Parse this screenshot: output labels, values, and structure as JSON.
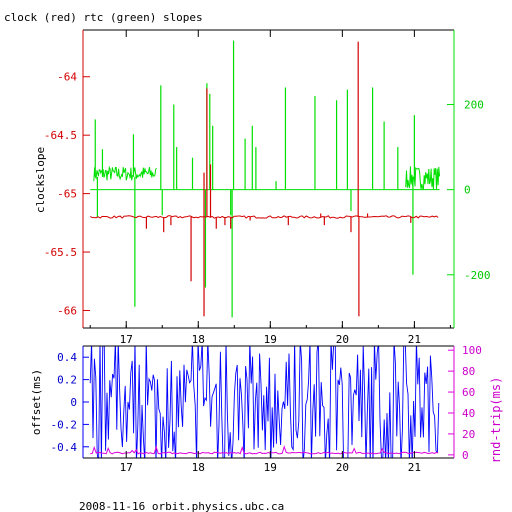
{
  "title": "clock (red) rtc (green) slopes",
  "footer": "2008-11-16 orbit.physics.ubc.ca",
  "colors": {
    "red": "#d40000",
    "green": "#00e000",
    "blue": "#0000ff",
    "magenta": "#dd00dd",
    "axis_black": "#000000"
  },
  "chart_data": [
    {
      "type": "line",
      "xlim": [
        16.4,
        21.55
      ],
      "x_ticks": [
        17,
        18,
        19,
        20,
        21
      ],
      "x_tick_labels": [
        "17",
        "18",
        "19",
        "20",
        "21"
      ],
      "left_axis": {
        "label": "clockslope",
        "ylim": [
          -66.15,
          -63.6
        ],
        "ticks": [
          -64,
          -64.5,
          -65,
          -65.5,
          -66
        ],
        "tick_labels": [
          "-64",
          "-64.5",
          "-65",
          "-65.5",
          "-66"
        ]
      },
      "right_axis": {
        "label": "",
        "ylim": [
          -325,
          375
        ],
        "ticks": [
          200,
          0,
          -200
        ],
        "tick_labels": [
          "200",
          "0",
          "-200"
        ]
      },
      "series": [
        {
          "name": "clock",
          "axis": "left",
          "color": "red",
          "baseline_y": -65.2,
          "x_range": [
            16.5,
            21.35
          ],
          "spikes": [
            {
              "x": 17.28,
              "y": -65.3
            },
            {
              "x": 17.52,
              "y": -65.33
            },
            {
              "x": 17.62,
              "y": -65.27
            },
            {
              "x": 17.9,
              "y": -65.75
            },
            {
              "x": 18.08,
              "y": -66.05
            },
            {
              "x": 18.08,
              "y": -64.82
            },
            {
              "x": 18.12,
              "y": -64.1
            },
            {
              "x": 18.17,
              "y": -64.75
            },
            {
              "x": 18.25,
              "y": -65.3
            },
            {
              "x": 18.37,
              "y": -65.27
            },
            {
              "x": 18.45,
              "y": -65.3
            },
            {
              "x": 18.72,
              "y": -65.23
            },
            {
              "x": 19.25,
              "y": -65.27
            },
            {
              "x": 19.7,
              "y": -65.17
            },
            {
              "x": 19.75,
              "y": -65.27
            },
            {
              "x": 20.12,
              "y": -65.33
            },
            {
              "x": 20.22,
              "y": -63.7
            },
            {
              "x": 20.23,
              "y": -66.05
            },
            {
              "x": 20.35,
              "y": -65.17
            },
            {
              "x": 20.95,
              "y": -65.25
            }
          ]
        },
        {
          "name": "rtc",
          "axis": "right",
          "color": "green",
          "baseline_y": 0,
          "x_range": [
            16.5,
            21.35
          ],
          "noisy_bands": [
            {
              "x0": 16.55,
              "x1": 17.42,
              "ylow": 20,
              "yhigh": 55
            },
            {
              "x0": 20.88,
              "x1": 21.35,
              "ylow": 0,
              "yhigh": 55
            }
          ],
          "spikes": [
            {
              "x": 16.57,
              "y": 165
            },
            {
              "x": 16.6,
              "y": -65
            },
            {
              "x": 16.67,
              "y": 95
            },
            {
              "x": 17.1,
              "y": 130
            },
            {
              "x": 17.12,
              "y": -275
            },
            {
              "x": 17.48,
              "y": 245
            },
            {
              "x": 17.5,
              "y": -60
            },
            {
              "x": 17.66,
              "y": 200
            },
            {
              "x": 17.7,
              "y": 100
            },
            {
              "x": 17.92,
              "y": 75
            },
            {
              "x": 18.1,
              "y": -230
            },
            {
              "x": 18.12,
              "y": 250
            },
            {
              "x": 18.16,
              "y": 225
            },
            {
              "x": 18.2,
              "y": 150
            },
            {
              "x": 18.45,
              "y": -60
            },
            {
              "x": 18.47,
              "y": -300
            },
            {
              "x": 18.49,
              "y": 350
            },
            {
              "x": 18.65,
              "y": 120
            },
            {
              "x": 18.75,
              "y": 150
            },
            {
              "x": 18.8,
              "y": 100
            },
            {
              "x": 19.08,
              "y": 20
            },
            {
              "x": 19.21,
              "y": 240
            },
            {
              "x": 19.62,
              "y": 220
            },
            {
              "x": 19.92,
              "y": 210
            },
            {
              "x": 20.07,
              "y": 235
            },
            {
              "x": 20.12,
              "y": -50
            },
            {
              "x": 20.42,
              "y": 240
            },
            {
              "x": 20.58,
              "y": 160
            },
            {
              "x": 20.77,
              "y": 100
            },
            {
              "x": 20.98,
              "y": -200
            },
            {
              "x": 21.0,
              "y": 175
            }
          ]
        }
      ]
    },
    {
      "type": "line",
      "xlim": [
        16.4,
        21.55
      ],
      "x_ticks": [
        17,
        18,
        19,
        20,
        21
      ],
      "x_tick_labels": [
        "17",
        "18",
        "19",
        "20",
        "21"
      ],
      "left_axis": {
        "label": "offset(ms)",
        "ylim": [
          -0.5,
          0.5
        ],
        "ticks": [
          0.4,
          0.2,
          0,
          -0.2,
          -0.4
        ],
        "tick_labels": [
          "0.4",
          "0.2",
          "0",
          "-0.2",
          "-0.4"
        ]
      },
      "right_axis": {
        "label": "rnd-trip(ms)",
        "ylim": [
          -3,
          104
        ],
        "ticks": [
          100,
          80,
          60,
          40,
          20,
          0
        ],
        "tick_labels": [
          "100",
          "80",
          "60",
          "40",
          "20",
          "0"
        ]
      },
      "series": [
        {
          "name": "offset",
          "axis": "left",
          "color": "blue",
          "x_range": [
            16.5,
            21.35
          ],
          "y_range": [
            -0.5,
            0.5
          ]
        },
        {
          "name": "rnd-trip",
          "axis": "right",
          "color": "magenta",
          "x_range": [
            16.5,
            21.35
          ],
          "typical_y": 1
        }
      ]
    }
  ]
}
